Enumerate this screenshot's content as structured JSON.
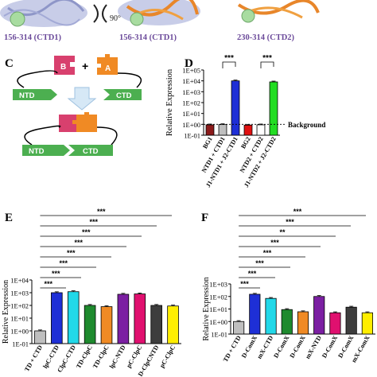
{
  "top": {
    "captions": [
      "156-314 (CTD1)",
      "156-314 (CTD1)",
      "230-314 (CTD2)"
    ],
    "rotation_label": "90°"
  },
  "panel_c": {
    "letter": "C",
    "block_b": "B",
    "block_a": "A",
    "plus": "+",
    "ntd": "NTD",
    "ctd": "CTD",
    "fused": "NTD",
    "fused_ctd": "CTD",
    "colors": {
      "b": "#d8406e",
      "a": "#f08a24",
      "arrow": "#4caf50"
    }
  },
  "panel_d": {
    "letter": "D",
    "background_label": "Background"
  },
  "panel_e": {
    "letter": "E"
  },
  "panel_f": {
    "letter": "F"
  },
  "chart_data": [
    {
      "panel": "D",
      "type": "bar",
      "scale": "log",
      "ylabel": "Relative Expression",
      "ylim": [
        0.1,
        100000
      ],
      "yticks": [
        "1E+05",
        "1E+04",
        "1E+03",
        "1E+02",
        "1E+01",
        "1E+00",
        "1E-01"
      ],
      "categories": [
        "BG1",
        "NTD1 + CTD1",
        "J1-NTD1 + J2-CTD1",
        "BG2",
        "NTD2 + CTD2",
        "J1-NTD2 + J2-CTD2"
      ],
      "values": [
        0.9,
        0.95,
        10000,
        0.85,
        0.9,
        8000
      ],
      "colors": [
        "#8b1a1a",
        "#bfbfbf",
        "#1e2fd6",
        "#e01010",
        "#ffffff",
        "#22dd22"
      ],
      "background_level": 1.0,
      "significance": [
        {
          "from": 1,
          "to": 2,
          "label": "***"
        },
        {
          "from": 4,
          "to": 5,
          "label": "***"
        }
      ]
    },
    {
      "panel": "E",
      "type": "bar",
      "scale": "log",
      "ylabel": "Relative Expression",
      "ylim": [
        0.1,
        10000
      ],
      "yticks": [
        "1E+04",
        "1E+03",
        "1E+02",
        "1E+01",
        "1E+00",
        "1E-01"
      ],
      "categories": [
        "TD + CTD",
        "lpC-CTD",
        "ClpC-CTD",
        "TD-ClpC",
        "TD-ClpC",
        "lpC-NTD",
        "pC-ClpC",
        "D-ClpCNTD",
        "pC-ClpC"
      ],
      "values": [
        1.0,
        1000,
        1200,
        100,
        80,
        750,
        800,
        100,
        90
      ],
      "colors": [
        "#bfbfbf",
        "#1e2fd6",
        "#22d8e8",
        "#1e8a2e",
        "#f08a24",
        "#7b1fa2",
        "#e0106f",
        "#3d3d3d",
        "#ffee00"
      ],
      "significance_count": 8,
      "significance_label": "***"
    },
    {
      "panel": "F",
      "type": "bar",
      "scale": "log",
      "ylabel": "Relative Expression",
      "ylim": [
        0.1,
        1000
      ],
      "yticks": [
        "1E+03",
        "1E+02",
        "1E+01",
        "1E+00",
        "1E-01"
      ],
      "categories": [
        "TD + CTD",
        "D-ComX",
        "mX-CTD",
        "D-ComX",
        "D-ComX",
        "mX-NTD",
        "D-ComX",
        "D-ComX",
        "mX-ComX"
      ],
      "values": [
        1.0,
        150,
        70,
        9,
        6,
        100,
        5,
        14,
        5
      ],
      "colors": [
        "#bfbfbf",
        "#1e2fd6",
        "#22d8e8",
        "#1e8a2e",
        "#f08a24",
        "#7b1fa2",
        "#e0106f",
        "#3d3d3d",
        "#ffee00"
      ],
      "significance": [
        "***",
        "***",
        "**",
        "***",
        "***",
        "***",
        "***",
        "***"
      ]
    }
  ]
}
